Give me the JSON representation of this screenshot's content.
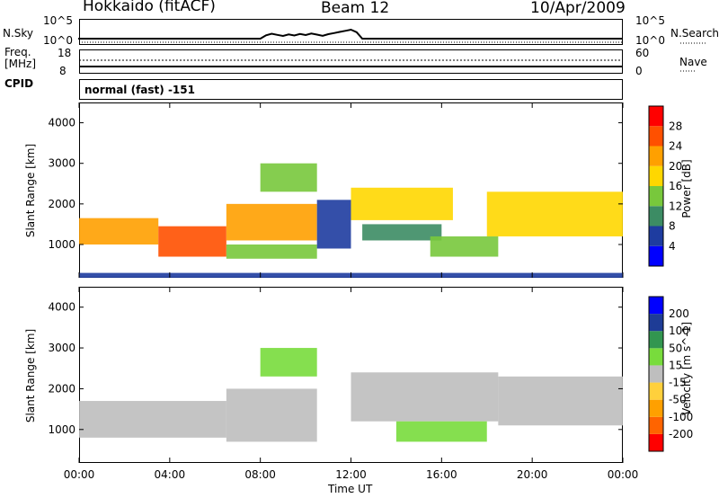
{
  "header": {
    "radar": "Hokkaido (fitACF)",
    "beam": "Beam 12",
    "date": "10/Apr/2009"
  },
  "status_panel": {
    "left_label_top": "N.Sky",
    "left_ticks_top": [
      "10^5",
      "10^0"
    ],
    "right_label_top": "N.Search",
    "right_ticks_top": [
      "10^5",
      "10^0"
    ],
    "left_label_mid_1": "Freq.",
    "left_label_mid_2": "[MHz]",
    "left_ticks_mid": [
      "18",
      "8"
    ],
    "right_label_mid": "Nave",
    "right_ticks_mid": [
      "60",
      "0"
    ],
    "cpid_label": "CPID",
    "cpid_text": "normal (fast) -151"
  },
  "x_axis": {
    "label": "Time UT",
    "ticks": [
      "00:00",
      "04:00",
      "08:00",
      "12:00",
      "16:00",
      "20:00",
      "00:00"
    ]
  },
  "colors": {
    "power": [
      "#0000ff",
      "#1e3ca0",
      "#3c8c64",
      "#78c83c",
      "#ffd700",
      "#ffa000",
      "#ff5000",
      "#ff0000"
    ],
    "velocity": [
      "#ff0000",
      "#ff6400",
      "#ffa000",
      "#ffd03c",
      "#bebebe",
      "#78dc3c",
      "#329650",
      "#1e3c96",
      "#0000ff"
    ]
  },
  "chart_data": [
    {
      "type": "heatmap",
      "title": "",
      "ylabel": "Slant Range [km]",
      "xlabel": "",
      "xlim": [
        0,
        24
      ],
      "ylim": [
        180,
        4500
      ],
      "y_ticks": [
        "1000",
        "2000",
        "3000",
        "4000"
      ],
      "colorbar": {
        "label": "Power [dB]",
        "ticks": [
          "4",
          "8",
          "12",
          "16",
          "20",
          "24",
          "28"
        ],
        "range": [
          0,
          30
        ]
      },
      "regions": [
        {
          "t": [
            0,
            3.5
          ],
          "r": [
            1000,
            1650
          ],
          "v": 22
        },
        {
          "t": [
            3.5,
            6.5
          ],
          "r": [
            700,
            1450
          ],
          "v": 25
        },
        {
          "t": [
            6.5,
            10.5
          ],
          "r": [
            1100,
            2000
          ],
          "v": 20
        },
        {
          "t": [
            6.5,
            10.5
          ],
          "r": [
            650,
            1000
          ],
          "v": 14
        },
        {
          "t": [
            8.0,
            10.5
          ],
          "r": [
            2300,
            3000
          ],
          "v": 12
        },
        {
          "t": [
            10.5,
            12.0
          ],
          "r": [
            900,
            2100
          ],
          "v": 6
        },
        {
          "t": [
            12.0,
            16.5
          ],
          "r": [
            1600,
            2400
          ],
          "v": 16
        },
        {
          "t": [
            12.5,
            16.0
          ],
          "r": [
            1100,
            1500
          ],
          "v": 8
        },
        {
          "t": [
            15.5,
            18.5
          ],
          "r": [
            700,
            1200
          ],
          "v": 14
        },
        {
          "t": [
            18.0,
            24.0
          ],
          "r": [
            1200,
            2300
          ],
          "v": 18
        },
        {
          "t": [
            0,
            24
          ],
          "r": [
            180,
            300
          ],
          "v": 4
        }
      ]
    },
    {
      "type": "heatmap",
      "title": "",
      "ylabel": "Slant Range [km]",
      "xlabel": "Time UT",
      "xlim": [
        0,
        24
      ],
      "ylim": [
        180,
        4500
      ],
      "y_ticks": [
        "1000",
        "2000",
        "3000",
        "4000"
      ],
      "colorbar": {
        "label": "Velocity [m s^-1]",
        "ticks": [
          "200",
          "100",
          "50",
          "15",
          "-15",
          "-50",
          "-100",
          "-200"
        ],
        "range": [
          -250,
          250
        ]
      },
      "regions": [
        {
          "t": [
            0,
            6.5
          ],
          "r": [
            800,
            1700
          ],
          "v": 0
        },
        {
          "t": [
            6.5,
            10.5
          ],
          "r": [
            700,
            2000
          ],
          "v": 0
        },
        {
          "t": [
            8.0,
            10.5
          ],
          "r": [
            2300,
            3000
          ],
          "v": 60
        },
        {
          "t": [
            12.0,
            18.5
          ],
          "r": [
            1200,
            2400
          ],
          "v": 0
        },
        {
          "t": [
            14.0,
            18.0
          ],
          "r": [
            700,
            1200
          ],
          "v": 60
        },
        {
          "t": [
            18.5,
            24.0
          ],
          "r": [
            1100,
            2300
          ],
          "v": 0
        }
      ]
    }
  ]
}
